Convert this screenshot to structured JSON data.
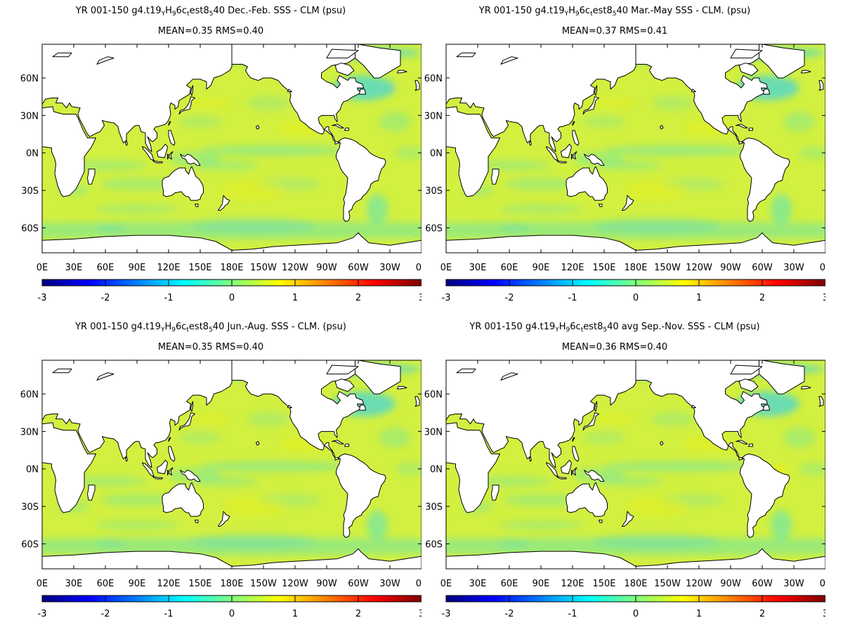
{
  "panels": [
    {
      "title_parts": [
        "YR 001-150 g4.t19",
        "Y",
        "H",
        "9",
        "6c",
        "t",
        "est8",
        "5",
        "40  Dec.-Feb. SSS - CLM (psu)"
      ],
      "stats": "MEAN=0.35   RMS=0.40"
    },
    {
      "title_parts": [
        "YR 001-150 g4.t19",
        "Y",
        "H",
        "9",
        "6c",
        "t",
        "est8",
        "5",
        "40 Mar.-May SSS - CLM. (psu)"
      ],
      "stats": "MEAN=0.37   RMS=0.41"
    },
    {
      "title_parts": [
        "YR 001-150 g4.t19",
        "Y",
        "H",
        "9",
        "6c",
        "t",
        "est8",
        "5",
        "40 Jun.-Aug. SSS - CLM. (psu)"
      ],
      "stats": "MEAN=0.35   RMS=0.40"
    },
    {
      "title_parts": [
        "YR 001-150 g4.t19",
        "Y",
        "H",
        "9",
        "6c",
        "t",
        "est8",
        "5",
        "40 avg Sep.-Nov. SSS - CLM (psu)"
      ],
      "stats": "MEAN=0.36   RMS=0.40"
    }
  ],
  "map_axes": {
    "x_ticks": [
      "0E",
      "30E",
      "60E",
      "90E",
      "120E",
      "150E",
      "180E",
      "150W",
      "120W",
      "90W",
      "60W",
      "30W",
      "0E"
    ],
    "y_ticks": [
      "60N",
      "30N",
      "0N",
      "30S",
      "60S"
    ],
    "lon_range": [
      0,
      360
    ],
    "lat_range": [
      -80,
      87
    ]
  },
  "colorbar": {
    "ticks": [
      "-3",
      "-2",
      "-1",
      "0",
      "1",
      "2",
      "3"
    ],
    "range": [
      -3,
      3
    ],
    "colors": [
      "#00007f",
      "#0000ff",
      "#007fff",
      "#00ffff",
      "#7fff7f",
      "#ffff00",
      "#ff7f00",
      "#ff0000",
      "#7f0000"
    ]
  },
  "colors": {
    "ocean_base": "#d2f040",
    "anomaly_cool": "#6fe6a6",
    "anomaly_cooler": "#59d8c6",
    "anomaly_warm": "#f4f000",
    "land": "#ffffff",
    "coast": "#000000"
  }
}
